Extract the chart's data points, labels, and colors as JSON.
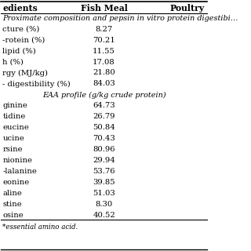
{
  "header_cols": [
    "edients",
    "Fish Meal",
    "Poultry"
  ],
  "section1_title": "Proximate composition and pepsin in vitro protein digestibi…",
  "section1_rows": [
    [
      "cture (%)",
      "8.27"
    ],
    [
      "‑rotein (%)",
      "70.21"
    ],
    [
      "lipid (%)",
      "11.55"
    ],
    [
      "h (%)",
      "17.08"
    ],
    [
      "rgy (MJ/kg)",
      "21.80"
    ],
    [
      "‑ digestibility (%)",
      "84.03"
    ]
  ],
  "section2_title": "EAA profile (g/kg crude protein)",
  "section2_rows": [
    [
      "ginine",
      "64.73"
    ],
    [
      "tidine",
      "26.79"
    ],
    [
      "eucine",
      "50.84"
    ],
    [
      "ucine",
      "70.43"
    ],
    [
      "rsine",
      "80.96"
    ],
    [
      "nionine",
      "29.94"
    ],
    [
      "‑lalanine",
      "53.76"
    ],
    [
      "eonine",
      "39.85"
    ],
    [
      "aline",
      "51.03"
    ],
    [
      "stine",
      "8.30"
    ],
    [
      "osine",
      "40.52"
    ]
  ],
  "footer": "*essential amino acid.",
  "bg_color": "#ffffff",
  "text_color": "#000000",
  "line_color": "#000000",
  "font_size": 7.2,
  "header_font_size": 7.8
}
